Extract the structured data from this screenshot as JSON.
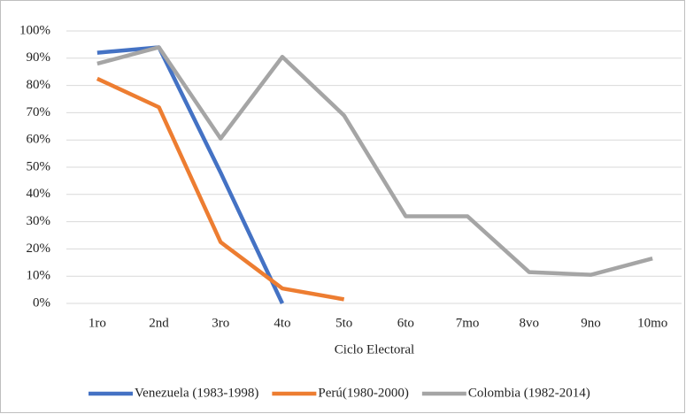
{
  "chart_data": {
    "type": "line",
    "x_label": "Ciclo Electoral",
    "categories": [
      "1ro",
      "2nd",
      "3ro",
      "4to",
      "5to",
      "6to",
      "7mo",
      "8vo",
      "9no",
      "10mo"
    ],
    "series": [
      {
        "name": "Venezuela (1983-1998)",
        "color": "#4472c4",
        "values": [
          92,
          94,
          48,
          0,
          null,
          null,
          null,
          null,
          null,
          null
        ]
      },
      {
        "name": "Perú(1980-2000)",
        "color": "#ed7d31",
        "values": [
          82.5,
          72,
          22.5,
          5.5,
          1.5,
          null,
          null,
          null,
          null,
          null
        ]
      },
      {
        "name": "Colombia (1982-2014)",
        "color": "#a5a5a5",
        "values": [
          88,
          94,
          60.5,
          90.5,
          69,
          32,
          32,
          11.5,
          10.5,
          16.5
        ]
      }
    ],
    "ylim": [
      0,
      100
    ],
    "yticks": [
      {
        "value": 0,
        "label": "0%"
      },
      {
        "value": 10,
        "label": "10%"
      },
      {
        "value": 20,
        "label": "20%"
      },
      {
        "value": 30,
        "label": "30%"
      },
      {
        "value": 40,
        "label": "40%"
      },
      {
        "value": 50,
        "label": "50%"
      },
      {
        "value": 60,
        "label": "60%"
      },
      {
        "value": 70,
        "label": "70%"
      },
      {
        "value": 80,
        "label": "80%"
      },
      {
        "value": 90,
        "label": "90%"
      },
      {
        "value": 100,
        "label": "100%"
      }
    ],
    "grid": true,
    "legend": "bottom"
  }
}
